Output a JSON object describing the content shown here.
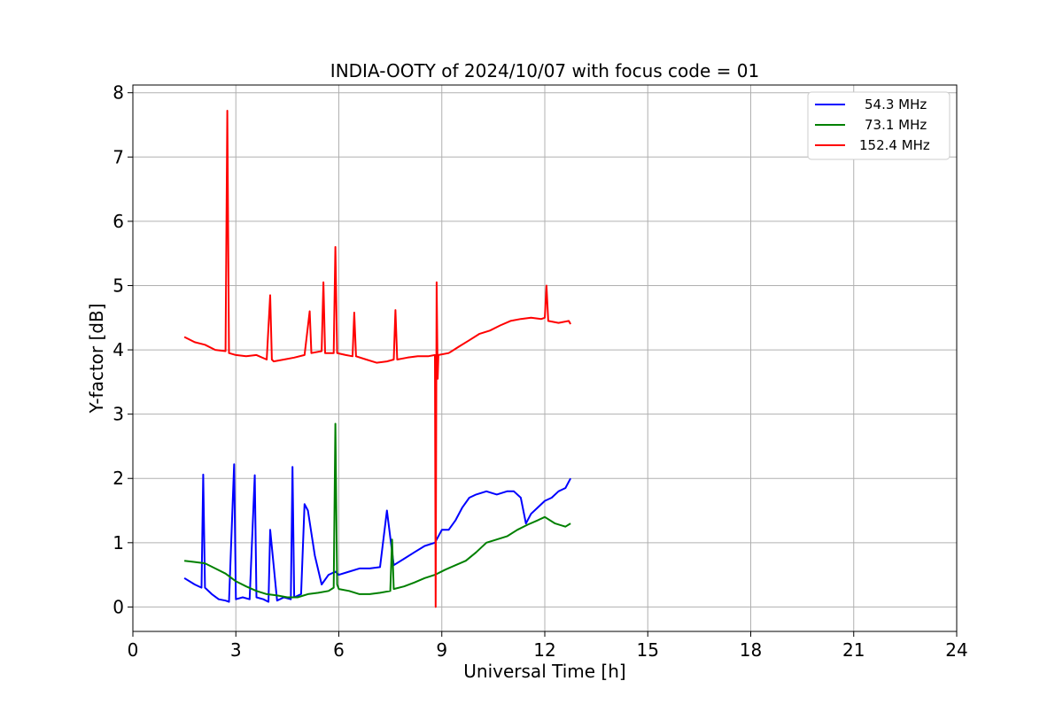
{
  "chart_data": {
    "type": "line",
    "title": "INDIA-OOTY of 2024/10/07 with focus code = 01",
    "xlabel": "Universal Time [h]",
    "ylabel": "Y-factor [dB]",
    "xlim": [
      0,
      24
    ],
    "ylim": [
      -0.38,
      8.12
    ],
    "xticks": [
      0,
      3,
      6,
      9,
      12,
      15,
      18,
      21,
      24
    ],
    "yticks": [
      0,
      1,
      2,
      3,
      4,
      5,
      6,
      7,
      8
    ],
    "grid": true,
    "legend_position": "top-right",
    "series": [
      {
        "name": "54.3 MHz",
        "color": "#0000ff",
        "x": [
          1.5,
          1.8,
          2.0,
          2.05,
          2.1,
          2.3,
          2.5,
          2.7,
          2.8,
          2.95,
          3.0,
          3.2,
          3.4,
          3.55,
          3.6,
          3.8,
          3.95,
          4.0,
          4.2,
          4.4,
          4.6,
          4.65,
          4.7,
          4.9,
          5.0,
          5.1,
          5.3,
          5.5,
          5.7,
          5.9,
          6.0,
          6.3,
          6.6,
          6.9,
          7.2,
          7.4,
          7.6,
          7.9,
          8.2,
          8.5,
          8.8,
          9.0,
          9.2,
          9.4,
          9.6,
          9.8,
          10.0,
          10.3,
          10.6,
          10.9,
          11.1,
          11.3,
          11.45,
          11.6,
          11.8,
          12.0,
          12.2,
          12.4,
          12.6,
          12.75
        ],
        "y": [
          0.45,
          0.35,
          0.3,
          2.06,
          0.3,
          0.2,
          0.12,
          0.1,
          0.08,
          2.22,
          0.12,
          0.15,
          0.12,
          2.05,
          0.15,
          0.12,
          0.08,
          1.2,
          0.1,
          0.15,
          0.12,
          2.18,
          0.15,
          0.2,
          1.6,
          1.5,
          0.8,
          0.35,
          0.5,
          0.55,
          0.5,
          0.55,
          0.6,
          0.6,
          0.62,
          1.5,
          0.65,
          0.75,
          0.85,
          0.95,
          1.0,
          1.2,
          1.2,
          1.35,
          1.55,
          1.7,
          1.75,
          1.8,
          1.75,
          1.8,
          1.8,
          1.7,
          1.3,
          1.45,
          1.55,
          1.65,
          1.7,
          1.8,
          1.85,
          2.0
        ]
      },
      {
        "name": "73.1 MHz",
        "color": "#008000",
        "x": [
          1.5,
          1.8,
          2.1,
          2.4,
          2.7,
          3.0,
          3.3,
          3.6,
          3.9,
          4.2,
          4.5,
          4.8,
          5.1,
          5.4,
          5.7,
          5.85,
          5.9,
          5.95,
          6.0,
          6.3,
          6.6,
          6.9,
          7.2,
          7.5,
          7.55,
          7.6,
          7.9,
          8.2,
          8.5,
          8.8,
          9.1,
          9.4,
          9.7,
          10.0,
          10.3,
          10.6,
          10.9,
          11.2,
          11.5,
          11.8,
          12.0,
          12.3,
          12.6,
          12.75
        ],
        "y": [
          0.72,
          0.7,
          0.68,
          0.6,
          0.52,
          0.4,
          0.32,
          0.25,
          0.2,
          0.18,
          0.15,
          0.15,
          0.2,
          0.22,
          0.25,
          0.3,
          2.85,
          0.35,
          0.28,
          0.25,
          0.2,
          0.2,
          0.22,
          0.25,
          1.05,
          0.28,
          0.32,
          0.38,
          0.45,
          0.5,
          0.58,
          0.65,
          0.72,
          0.85,
          1.0,
          1.05,
          1.1,
          1.2,
          1.28,
          1.35,
          1.4,
          1.3,
          1.25,
          1.3
        ]
      },
      {
        "name": "152.4 MHz",
        "color": "#ff0000",
        "x": [
          1.5,
          1.8,
          2.1,
          2.4,
          2.7,
          2.75,
          2.8,
          3.0,
          3.3,
          3.6,
          3.9,
          4.0,
          4.05,
          4.1,
          4.4,
          4.7,
          5.0,
          5.15,
          5.2,
          5.5,
          5.55,
          5.6,
          5.85,
          5.9,
          5.95,
          6.2,
          6.4,
          6.45,
          6.5,
          6.8,
          7.1,
          7.4,
          7.6,
          7.65,
          7.7,
          8.0,
          8.3,
          8.6,
          8.8,
          8.82,
          8.85,
          8.88,
          8.9,
          9.2,
          9.5,
          9.8,
          10.1,
          10.4,
          10.7,
          11.0,
          11.3,
          11.6,
          11.9,
          12.0,
          12.05,
          12.1,
          12.4,
          12.7,
          12.75
        ],
        "y": [
          4.2,
          4.12,
          4.08,
          4.0,
          3.98,
          7.72,
          3.95,
          3.92,
          3.9,
          3.92,
          3.85,
          4.85,
          3.85,
          3.82,
          3.85,
          3.88,
          3.92,
          4.6,
          3.95,
          3.98,
          5.05,
          3.95,
          3.95,
          5.6,
          3.95,
          3.92,
          3.9,
          4.58,
          3.9,
          3.85,
          3.8,
          3.82,
          3.85,
          4.62,
          3.85,
          3.88,
          3.9,
          3.9,
          3.92,
          0.0,
          5.05,
          3.55,
          3.92,
          3.95,
          4.05,
          4.15,
          4.25,
          4.3,
          4.38,
          4.45,
          4.48,
          4.5,
          4.48,
          4.5,
          5.0,
          4.45,
          4.42,
          4.45,
          4.4
        ]
      }
    ]
  }
}
